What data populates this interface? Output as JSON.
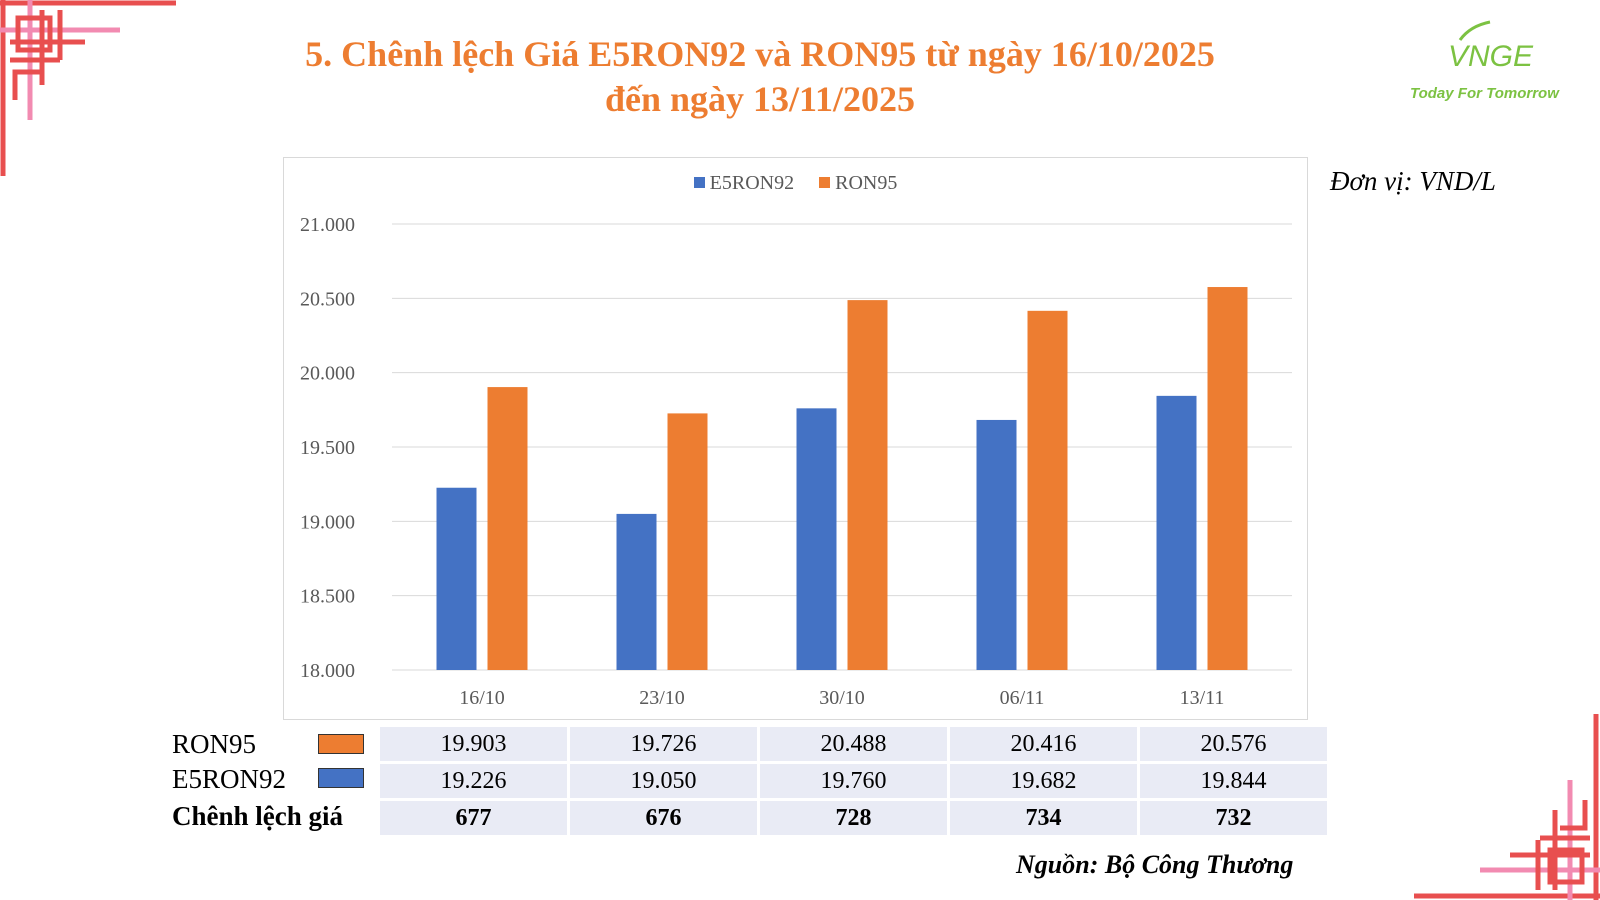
{
  "title": {
    "line1": "5. Chênh lệch Giá E5RON92 và RON95 từ ngày 16/10/2025",
    "line2": "đến ngày 13/11/2025"
  },
  "logo": {
    "brand": "VNGE",
    "tagline": "Today For Tomorrow"
  },
  "unit_label": "Đơn vị: VND/L",
  "source": "Nguồn: Bộ Công Thương",
  "colors": {
    "title": "#ed7d31",
    "e5ron92": "#4472c4",
    "ron95": "#ed7d31",
    "table_bg": "#e9ebf5",
    "corner_red": "#e84f4f",
    "corner_pink": "#f28bb1",
    "logo_green": "#7cc242"
  },
  "chart_data": {
    "type": "bar",
    "categories": [
      "16/10",
      "23/10",
      "30/10",
      "06/11",
      "13/11"
    ],
    "series": [
      {
        "name": "E5RON92",
        "values": [
          19226,
          19050,
          19760,
          19682,
          19844
        ]
      },
      {
        "name": "RON95",
        "values": [
          19903,
          19726,
          20488,
          20416,
          20576
        ]
      }
    ],
    "ylim": [
      18000,
      21000
    ],
    "yticks": [
      18000,
      18500,
      19000,
      19500,
      20000,
      20500,
      21000
    ],
    "ytick_labels": [
      "18.000",
      "18.500",
      "19.000",
      "19.500",
      "20.000",
      "20.500",
      "21.000"
    ],
    "grid": true,
    "legend_position": "top-center"
  },
  "table": {
    "rows": [
      {
        "label": "RON95",
        "swatch": "ron95",
        "values": [
          "19.903",
          "19.726",
          "20.488",
          "20.416",
          "20.576"
        ]
      },
      {
        "label": "E5RON92",
        "swatch": "e5ron92",
        "values": [
          "19.226",
          "19.050",
          "19.760",
          "19.682",
          "19.844"
        ]
      },
      {
        "label": "Chênh lệch giá",
        "swatch": "",
        "values": [
          "677",
          "676",
          "728",
          "734",
          "732"
        ]
      }
    ]
  }
}
